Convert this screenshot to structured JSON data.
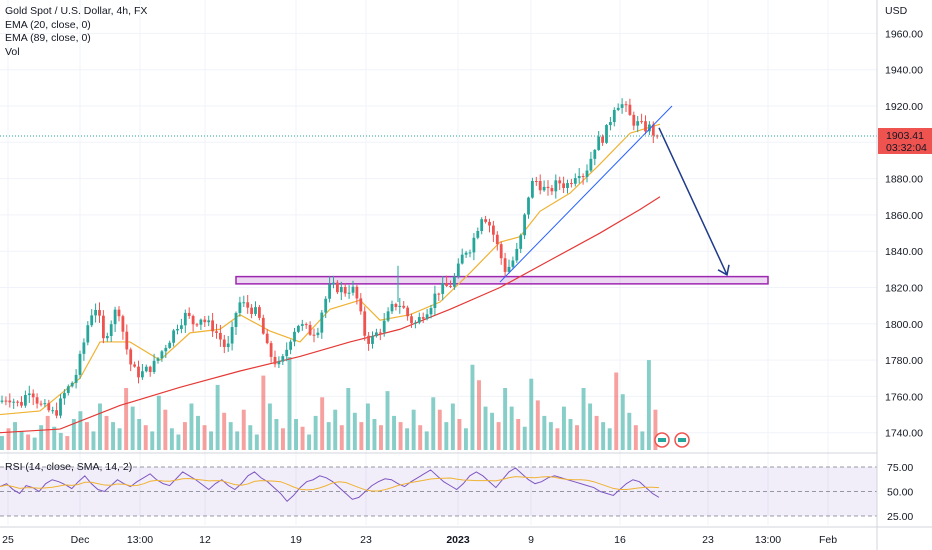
{
  "header": {
    "symbol": "Gold Spot / U.S. Dollar, 4h, FX",
    "indicators": [
      "EMA (20, close, 0)",
      "EMA (89, close, 0)",
      "Vol"
    ],
    "currency": "USD"
  },
  "price_badge": {
    "price": "1903.41",
    "countdown": "03:32:04",
    "color": "#ef5350"
  },
  "rsi_panel": {
    "label": "RSI (14, close, SMA, 14, 2)",
    "levels": [
      "75.00",
      "50.00",
      "25.00"
    ],
    "color": "#7e57c2"
  },
  "colors": {
    "up": "#26a69a",
    "down": "#ef5350",
    "ema20": "#f0b232",
    "ema89": "#e53935",
    "trendline": "#2962ff",
    "support_zone": "#9c27b0"
  },
  "chart_data": {
    "type": "candlestick",
    "title": "Gold Spot / U.S. Dollar, 4h, FX",
    "ylabel": "USD",
    "y_ticks": [
      1740,
      1760,
      1780,
      1800,
      1820,
      1840,
      1860,
      1880,
      1900,
      1920,
      1940,
      1960
    ],
    "y_tick_labels": [
      "1740.00",
      "1760.00",
      "1780.00",
      "1800.00",
      "1820.00",
      "1840.00",
      "1860.00",
      "1880.00",
      "1900.00",
      "1920.00",
      "1940.00",
      "1960.00"
    ],
    "ylim": [
      1730,
      1975
    ],
    "x_tick_labels": [
      "25",
      "Dec",
      "13:00",
      "12",
      "19",
      "23",
      "2023",
      "9",
      "16",
      "23",
      "13:00",
      "Feb"
    ],
    "close_path": [
      [
        0,
        1757
      ],
      [
        8,
        1760
      ],
      [
        20,
        1755
      ],
      [
        30,
        1765
      ],
      [
        40,
        1755
      ],
      [
        55,
        1750
      ],
      [
        65,
        1762
      ],
      [
        75,
        1770
      ],
      [
        82,
        1785
      ],
      [
        90,
        1805
      ],
      [
        97,
        1810
      ],
      [
        103,
        1790
      ],
      [
        110,
        1800
      ],
      [
        118,
        1810
      ],
      [
        125,
        1790
      ],
      [
        132,
        1775
      ],
      [
        140,
        1772
      ],
      [
        148,
        1775
      ],
      [
        155,
        1778
      ],
      [
        162,
        1785
      ],
      [
        170,
        1792
      ],
      [
        178,
        1800
      ],
      [
        186,
        1805
      ],
      [
        194,
        1800
      ],
      [
        200,
        1804
      ],
      [
        207,
        1800
      ],
      [
        213,
        1798
      ],
      [
        220,
        1792
      ],
      [
        227,
        1785
      ],
      [
        232,
        1795
      ],
      [
        238,
        1812
      ],
      [
        245,
        1810
      ],
      [
        252,
        1808
      ],
      [
        258,
        1805
      ],
      [
        263,
        1795
      ],
      [
        268,
        1785
      ],
      [
        274,
        1780
      ],
      [
        280,
        1776
      ],
      [
        286,
        1785
      ],
      [
        292,
        1795
      ],
      [
        298,
        1800
      ],
      [
        306,
        1797
      ],
      [
        312,
        1795
      ],
      [
        318,
        1798
      ],
      [
        323,
        1810
      ],
      [
        330,
        1820
      ],
      [
        337,
        1820
      ],
      [
        345,
        1818
      ],
      [
        352,
        1820
      ],
      [
        358,
        1812
      ],
      [
        364,
        1795
      ],
      [
        370,
        1790
      ],
      [
        377,
        1795
      ],
      [
        384,
        1800
      ],
      [
        391,
        1808
      ],
      [
        398,
        1812
      ],
      [
        404,
        1808
      ],
      [
        410,
        1802
      ],
      [
        416,
        1800
      ],
      [
        422,
        1805
      ],
      [
        430,
        1810
      ],
      [
        437,
        1818
      ],
      [
        445,
        1820
      ],
      [
        452,
        1822
      ],
      [
        458,
        1830
      ],
      [
        464,
        1840
      ],
      [
        470,
        1842
      ],
      [
        476,
        1850
      ],
      [
        481,
        1860
      ],
      [
        487,
        1858
      ],
      [
        493,
        1850
      ],
      [
        499,
        1840
      ],
      [
        505,
        1830
      ],
      [
        510,
        1832
      ],
      [
        516,
        1838
      ],
      [
        522,
        1850
      ],
      [
        528,
        1870
      ],
      [
        534,
        1880
      ],
      [
        541,
        1876
      ],
      [
        548,
        1872
      ],
      [
        554,
        1876
      ],
      [
        560,
        1878
      ],
      [
        566,
        1876
      ],
      [
        572,
        1880
      ],
      [
        578,
        1885
      ],
      [
        584,
        1882
      ],
      [
        590,
        1890
      ],
      [
        596,
        1900
      ],
      [
        602,
        1902
      ],
      [
        608,
        1908
      ],
      [
        614,
        1920
      ],
      [
        620,
        1922
      ],
      [
        626,
        1918
      ],
      [
        632,
        1912
      ],
      [
        638,
        1910
      ],
      [
        644,
        1908
      ],
      [
        650,
        1908
      ],
      [
        656,
        1903
      ],
      [
        659,
        1898
      ]
    ],
    "series": [
      {
        "name": "EMA (20, close, 0)",
        "points": [
          [
            0,
            1750
          ],
          [
            40,
            1752
          ],
          [
            80,
            1770
          ],
          [
            100,
            1790
          ],
          [
            130,
            1790
          ],
          [
            160,
            1780
          ],
          [
            190,
            1795
          ],
          [
            220,
            1797
          ],
          [
            240,
            1805
          ],
          [
            270,
            1796
          ],
          [
            300,
            1790
          ],
          [
            330,
            1808
          ],
          [
            360,
            1813
          ],
          [
            380,
            1802
          ],
          [
            410,
            1805
          ],
          [
            440,
            1812
          ],
          [
            470,
            1828
          ],
          [
            500,
            1845
          ],
          [
            520,
            1848
          ],
          [
            540,
            1862
          ],
          [
            570,
            1872
          ],
          [
            600,
            1888
          ],
          [
            630,
            1905
          ],
          [
            660,
            1910
          ]
        ]
      },
      {
        "name": "EMA (89, close, 0)",
        "points": [
          [
            0,
            1740
          ],
          [
            60,
            1742
          ],
          [
            120,
            1755
          ],
          [
            180,
            1765
          ],
          [
            240,
            1774
          ],
          [
            300,
            1782
          ],
          [
            350,
            1790
          ],
          [
            400,
            1797
          ],
          [
            450,
            1808
          ],
          [
            500,
            1820
          ],
          [
            550,
            1835
          ],
          [
            600,
            1850
          ],
          [
            640,
            1863
          ],
          [
            660,
            1870
          ]
        ]
      }
    ],
    "support_zone": [
      1822,
      1826
    ],
    "projection": {
      "from": [
        659,
        1908
      ],
      "to": [
        727,
        1827
      ]
    },
    "trendline": {
      "from": [
        500,
        1823
      ],
      "to": [
        672,
        1920
      ]
    },
    "volume": [
      9,
      14,
      18,
      12,
      10,
      8,
      16,
      22,
      15,
      11,
      9,
      20,
      25,
      18,
      12,
      30,
      22,
      18,
      14,
      40,
      28,
      20,
      16,
      12,
      35,
      26,
      14,
      10,
      18,
      30,
      22,
      16,
      12,
      42,
      24,
      18,
      12,
      26,
      16,
      10,
      48,
      30,
      20,
      14,
      60,
      20,
      15,
      10,
      22,
      34,
      18,
      26,
      16,
      40,
      24,
      18,
      30,
      20,
      16,
      38,
      22,
      18,
      14,
      26,
      16,
      12,
      34,
      26,
      18,
      30,
      20,
      14,
      55,
      45,
      28,
      24,
      18,
      40,
      28,
      20,
      15,
      46,
      32,
      22,
      18,
      14,
      28,
      20,
      16,
      40,
      30,
      22,
      18,
      14,
      50,
      36,
      24,
      16,
      12,
      58,
      26
    ],
    "rsi": {
      "ylim": [
        10,
        90
      ],
      "levels": [
        75,
        50,
        25
      ],
      "values": [
        55,
        58,
        52,
        48,
        56,
        54,
        50,
        58,
        62,
        60,
        57,
        53,
        60,
        66,
        58,
        52,
        50,
        56,
        62,
        58,
        55,
        60,
        64,
        68,
        62,
        58,
        56,
        63,
        70,
        66,
        62,
        57,
        52,
        58,
        62,
        56,
        52,
        58,
        66,
        70,
        64,
        60,
        54,
        48,
        40,
        46,
        54,
        60,
        62,
        66,
        64,
        60,
        54,
        48,
        42,
        44,
        50,
        56,
        60,
        63,
        62,
        58,
        55,
        60,
        64,
        68,
        72,
        66,
        60,
        56,
        52,
        58,
        66,
        70,
        66,
        60,
        54,
        62,
        70,
        74,
        68,
        62,
        58,
        60,
        64,
        66,
        64,
        62,
        60,
        58,
        56,
        54,
        50,
        48,
        46,
        52,
        58,
        62,
        60,
        54,
        48,
        44
      ]
    }
  }
}
